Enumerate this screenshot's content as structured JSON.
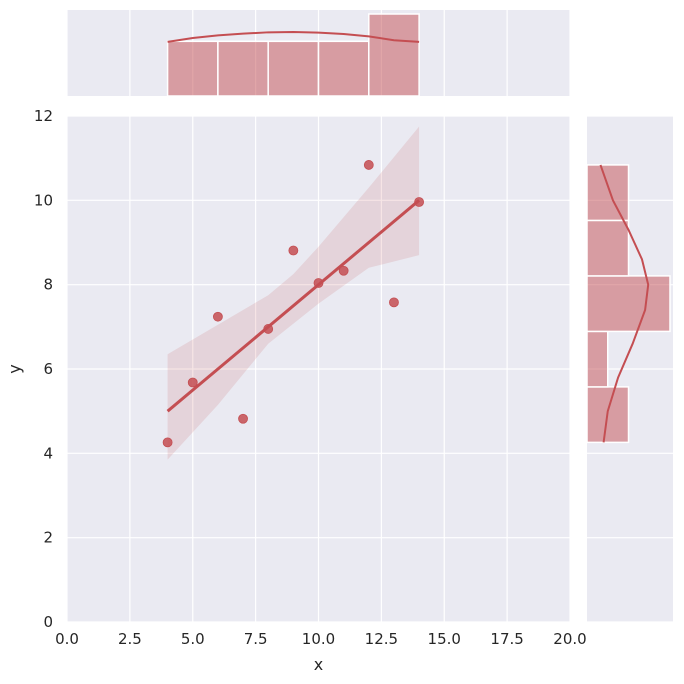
{
  "chart_data": {
    "type": "scatter",
    "title": "",
    "xlabel": "x",
    "ylabel": "y",
    "xlim": [
      0,
      20
    ],
    "ylim": [
      0,
      12
    ],
    "xticks": [
      "0.0",
      "2.5",
      "5.0",
      "7.5",
      "10.0",
      "12.5",
      "15.0",
      "17.5",
      "20.0"
    ],
    "yticks": [
      "0",
      "2",
      "4",
      "6",
      "8",
      "10",
      "12"
    ],
    "grid": true,
    "colors": {
      "series": "#c44e52",
      "background": "#eaeaf2",
      "grid": "#ffffff"
    },
    "points": [
      {
        "x": 4,
        "y": 4.26
      },
      {
        "x": 5,
        "y": 5.68
      },
      {
        "x": 6,
        "y": 7.24
      },
      {
        "x": 7,
        "y": 4.82
      },
      {
        "x": 8,
        "y": 6.95
      },
      {
        "x": 9,
        "y": 8.81
      },
      {
        "x": 10,
        "y": 8.04
      },
      {
        "x": 11,
        "y": 8.33
      },
      {
        "x": 12,
        "y": 10.84
      },
      {
        "x": 13,
        "y": 7.58
      },
      {
        "x": 14,
        "y": 9.96
      }
    ],
    "regression": {
      "x_range": [
        4,
        14
      ],
      "line": [
        [
          4,
          5.0
        ],
        [
          14,
          10.0
        ]
      ],
      "ci_upper": [
        [
          4,
          6.35
        ],
        [
          6,
          7.05
        ],
        [
          8,
          7.75
        ],
        [
          9,
          8.25
        ],
        [
          10,
          8.9
        ],
        [
          12,
          10.3
        ],
        [
          14,
          11.75
        ]
      ],
      "ci_lower": [
        [
          4,
          3.85
        ],
        [
          6,
          5.15
        ],
        [
          8,
          6.6
        ],
        [
          10,
          7.55
        ],
        [
          12,
          8.4
        ],
        [
          14,
          8.7
        ]
      ]
    },
    "marginal_x": {
      "bins": [
        [
          4,
          6
        ],
        [
          6,
          8
        ],
        [
          8,
          10
        ],
        [
          10,
          12
        ],
        [
          12,
          14
        ]
      ],
      "counts": [
        2,
        2,
        2,
        2,
        3
      ],
      "kde": [
        [
          4,
          1.98
        ],
        [
          5,
          2.12
        ],
        [
          6,
          2.22
        ],
        [
          7,
          2.28
        ],
        [
          8,
          2.33
        ],
        [
          9,
          2.34
        ],
        [
          10,
          2.32
        ],
        [
          11,
          2.27
        ],
        [
          12,
          2.18
        ],
        [
          13,
          2.04
        ],
        [
          14,
          1.98
        ]
      ]
    },
    "marginal_y": {
      "bins": [
        [
          4.26,
          5.576
        ],
        [
          5.576,
          6.892
        ],
        [
          6.892,
          8.208
        ],
        [
          8.208,
          9.524
        ],
        [
          9.524,
          10.84
        ]
      ],
      "counts": [
        2,
        1,
        4,
        2,
        2
      ],
      "kde": [
        [
          4.26,
          0.8
        ],
        [
          5.0,
          1.0
        ],
        [
          5.8,
          1.5
        ],
        [
          6.6,
          2.2
        ],
        [
          7.4,
          2.8
        ],
        [
          8.0,
          2.95
        ],
        [
          8.6,
          2.65
        ],
        [
          9.3,
          2.0
        ],
        [
          10.0,
          1.25
        ],
        [
          10.84,
          0.65
        ]
      ]
    }
  }
}
